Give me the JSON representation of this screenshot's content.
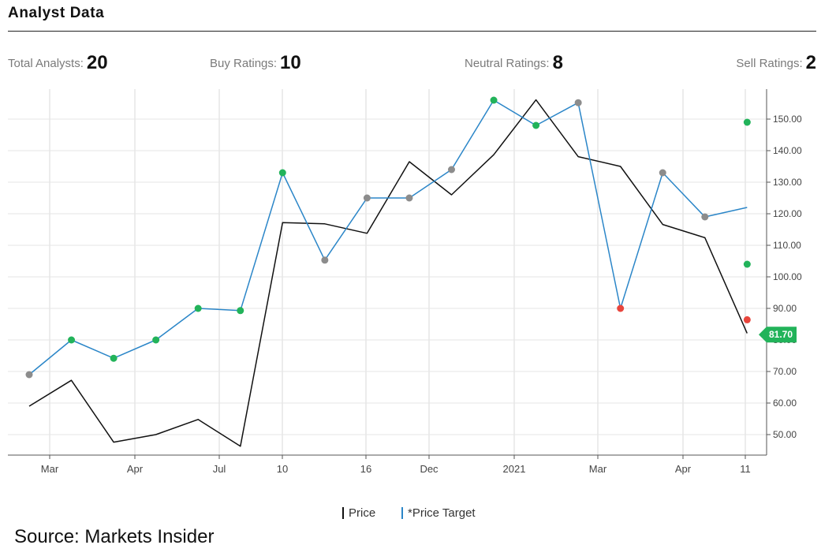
{
  "header": {
    "title": "Analyst Data"
  },
  "stats": {
    "total_label": "Total Analysts:",
    "total_value": "20",
    "buy_label": "Buy Ratings:",
    "buy_value": "10",
    "neutral_label": "Neutral Ratings:",
    "neutral_value": "8",
    "sell_label": "Sell Ratings:",
    "sell_value": "2"
  },
  "colors": {
    "price": "#111111",
    "price_target": "#2b86c8",
    "buy": "#22b35a",
    "neutral": "#8c8c8c",
    "sell": "#e8453c",
    "grid": "#e6e6e6",
    "current_badge": "#22b35a"
  },
  "chart_data": {
    "type": "line",
    "x_ticks": [
      "Mar",
      "Apr",
      "Jul",
      "10",
      "16",
      "Dec",
      "2021",
      "Mar",
      "Apr",
      "11"
    ],
    "y_ticks": [
      "50.00",
      "60.00",
      "70.00",
      "80.00",
      "90.00",
      "100.00",
      "110.00",
      "120.00",
      "130.00",
      "140.00",
      "150.00"
    ],
    "ylim": [
      43.5,
      159.5
    ],
    "grid": true,
    "legend_position": "bottom-center",
    "series": [
      {
        "name": "Price",
        "color_key": "price",
        "values": [
          59,
          67.2,
          47.6,
          50,
          54.8,
          46.3,
          117.2,
          116.8,
          113.8,
          136.5,
          126,
          138.7,
          156.1,
          138.1,
          135,
          116.6,
          112.4,
          82.1
        ]
      },
      {
        "name": "*Price Target",
        "color_key": "price_target",
        "values": [
          69,
          80,
          74.2,
          80,
          90,
          89.3,
          133,
          105.3,
          125,
          125,
          134,
          156,
          148,
          155.2,
          90,
          133,
          119,
          122
        ]
      }
    ],
    "rating_markers": [
      {
        "index": 0,
        "value": 69,
        "rating": "neutral"
      },
      {
        "index": 1,
        "value": 80,
        "rating": "buy"
      },
      {
        "index": 2,
        "value": 74.2,
        "rating": "buy"
      },
      {
        "index": 3,
        "value": 80,
        "rating": "buy"
      },
      {
        "index": 4,
        "value": 90,
        "rating": "buy"
      },
      {
        "index": 5,
        "value": 89.3,
        "rating": "buy"
      },
      {
        "index": 6,
        "value": 133,
        "rating": "buy"
      },
      {
        "index": 7,
        "value": 105.3,
        "rating": "neutral"
      },
      {
        "index": 8,
        "value": 125,
        "rating": "neutral"
      },
      {
        "index": 9,
        "value": 125,
        "rating": "neutral"
      },
      {
        "index": 10,
        "value": 134,
        "rating": "neutral"
      },
      {
        "index": 11,
        "value": 156,
        "rating": "buy"
      },
      {
        "index": 12,
        "value": 148,
        "rating": "buy"
      },
      {
        "index": 13,
        "value": 155.2,
        "rating": "neutral"
      },
      {
        "index": 14,
        "value": 90,
        "rating": "sell"
      },
      {
        "index": 15,
        "value": 133,
        "rating": "neutral"
      },
      {
        "index": 16,
        "value": 119,
        "rating": "neutral"
      },
      {
        "index": 17,
        "value": 149,
        "rating": "buy"
      },
      {
        "index": 17,
        "value": 104,
        "rating": "buy"
      },
      {
        "index": 17,
        "value": 86.4,
        "rating": "sell"
      }
    ],
    "current_price": {
      "value": 81.7,
      "label": "81.70"
    }
  },
  "legend": {
    "price_label": "Price",
    "target_label": "*Price Target"
  },
  "footer": {
    "source": "Source: Markets Insider"
  }
}
